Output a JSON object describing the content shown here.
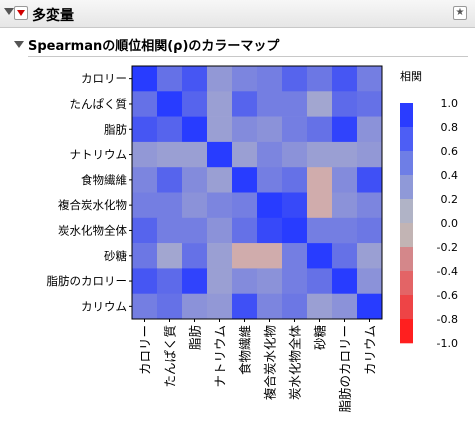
{
  "header": {
    "title": "多変量",
    "star_glyph": "★"
  },
  "report": {
    "title": "Spearmanの順位相関(ρ)のカラーマップ"
  },
  "chart_data": {
    "type": "heatmap",
    "variables": [
      "カロリー",
      "たんぱく質",
      "脂肪",
      "ナトリウム",
      "食物繊維",
      "複合炭水化物",
      "炭水化物全体",
      "砂糖",
      "脂肪のカロリー",
      "カリウム"
    ],
    "values": [
      [
        1.0,
        0.6,
        0.8,
        0.3,
        0.45,
        0.5,
        0.7,
        0.55,
        0.8,
        0.5
      ],
      [
        0.6,
        1.0,
        0.7,
        0.25,
        0.7,
        0.5,
        0.5,
        0.2,
        0.65,
        0.6
      ],
      [
        0.8,
        0.7,
        1.0,
        0.25,
        0.4,
        0.35,
        0.5,
        0.6,
        0.95,
        0.35
      ],
      [
        0.3,
        0.25,
        0.25,
        1.0,
        0.25,
        0.45,
        0.35,
        0.25,
        0.25,
        0.3
      ],
      [
        0.45,
        0.7,
        0.4,
        0.25,
        1.0,
        0.5,
        0.6,
        -0.05,
        0.4,
        0.85
      ],
      [
        0.5,
        0.5,
        0.35,
        0.45,
        0.5,
        1.0,
        0.9,
        -0.05,
        0.35,
        0.45
      ],
      [
        0.7,
        0.5,
        0.5,
        0.35,
        0.6,
        0.9,
        1.0,
        0.5,
        0.5,
        0.55
      ],
      [
        0.55,
        0.2,
        0.6,
        0.25,
        -0.05,
        -0.05,
        0.5,
        1.0,
        0.6,
        0.25
      ],
      [
        0.8,
        0.65,
        0.95,
        0.25,
        0.4,
        0.35,
        0.5,
        0.6,
        1.0,
        0.35
      ],
      [
        0.5,
        0.6,
        0.35,
        0.3,
        0.85,
        0.45,
        0.55,
        0.25,
        0.35,
        1.0
      ]
    ],
    "color_scale": {
      "title": "相関",
      "min": -1.0,
      "max": 1.0,
      "ticks": [
        "1.0",
        "0.8",
        "0.6",
        "0.4",
        "0.2",
        "0.0",
        "-0.2",
        "-0.4",
        "-0.6",
        "-0.8",
        "-1.0"
      ],
      "colors": [
        "#2a3cff",
        "#4d5ef5",
        "#6e7ee6",
        "#8f99d8",
        "#b0b3c6",
        "#c2b4b4",
        "#d4878a",
        "#e36466",
        "#ee4446",
        "#ff1f1f"
      ]
    }
  }
}
